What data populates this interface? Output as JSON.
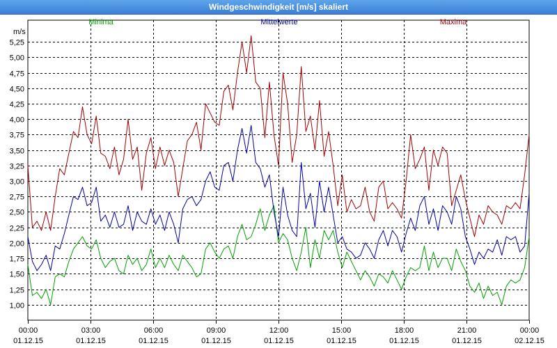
{
  "window": {
    "title": "Windgeschwindigkeit [m/s] skaliert"
  },
  "chart_data": {
    "type": "line",
    "title": "Windgeschwindigkeit [m/s] skaliert",
    "ylabel": "m/s",
    "ylim": [
      0.75,
      5.6
    ],
    "xlim_hours": [
      0,
      24
    ],
    "grid": true,
    "yticks": [
      "1,00",
      "1,25",
      "1,50",
      "1,75",
      "2,00",
      "2,25",
      "2,50",
      "2,75",
      "3,00",
      "3,25",
      "3,50",
      "3,75",
      "4,00",
      "4,25",
      "4,50",
      "4,75",
      "5,00",
      "5,25"
    ],
    "xticks": [
      {
        "time": "00:00",
        "date": "01.12.15"
      },
      {
        "time": "03:00",
        "date": "01.12.15"
      },
      {
        "time": "06:00",
        "date": "01.12.15"
      },
      {
        "time": "09:00",
        "date": "01.12.15"
      },
      {
        "time": "12:00",
        "date": "01.12.15"
      },
      {
        "time": "15:00",
        "date": "01.12.15"
      },
      {
        "time": "18:00",
        "date": "01.12.15"
      },
      {
        "time": "21:00",
        "date": "01.12.15"
      },
      {
        "time": "00:00",
        "date": "02.12.15"
      }
    ],
    "series": [
      {
        "name": "Minima",
        "color": "#00a000",
        "values": [
          1.65,
          1.15,
          1.2,
          1.1,
          1.25,
          1.0,
          1.45,
          1.5,
          1.45,
          1.7,
          1.9,
          2.0,
          2.1,
          1.95,
          1.9,
          2.05,
          1.75,
          1.6,
          1.7,
          1.75,
          1.55,
          1.5,
          1.8,
          1.65,
          1.75,
          1.55,
          1.65,
          1.9,
          1.6,
          1.75,
          1.6,
          1.8,
          1.65,
          1.55,
          1.8,
          1.7,
          1.6,
          1.45,
          1.5,
          1.9,
          2.0,
          1.85,
          1.75,
          1.9,
          1.95,
          1.75,
          2.1,
          2.3,
          2.05,
          2.1,
          2.3,
          2.55,
          2.2,
          2.45,
          2.6,
          2.0,
          2.15,
          2.05,
          1.75,
          1.55,
          1.85,
          2.25,
          1.6,
          2.05,
          1.75,
          2.2,
          2.05,
          2.2,
          1.85,
          1.6,
          1.85,
          1.7,
          1.55,
          1.4,
          1.55,
          1.45,
          1.3,
          1.5,
          1.45,
          1.35,
          1.55,
          1.4,
          1.25,
          1.45,
          1.6,
          1.55,
          1.6,
          1.95,
          1.55,
          1.85,
          1.6,
          1.75,
          1.75,
          1.55,
          1.9,
          1.7,
          1.55,
          1.3,
          1.2,
          1.35,
          1.1,
          1.3,
          1.15,
          1.2,
          1.0,
          1.3,
          1.4,
          1.35,
          1.4,
          1.6,
          2.1
        ]
      },
      {
        "name": "Mittelwerte",
        "color": "#0000a0",
        "values": [
          2.1,
          1.7,
          1.55,
          1.65,
          1.8,
          1.55,
          1.95,
          1.9,
          2.15,
          2.45,
          2.75,
          2.7,
          2.9,
          2.6,
          2.65,
          2.9,
          2.35,
          2.45,
          2.25,
          2.5,
          2.25,
          2.3,
          2.6,
          2.2,
          2.5,
          2.35,
          2.3,
          2.55,
          2.3,
          2.45,
          2.2,
          2.5,
          2.3,
          2.0,
          2.55,
          2.7,
          2.75,
          2.6,
          2.7,
          3.0,
          3.15,
          2.9,
          2.85,
          3.25,
          3.3,
          3.0,
          3.5,
          3.85,
          3.45,
          3.9,
          3.3,
          3.2,
          2.9,
          3.1,
          2.5,
          2.1,
          2.9,
          2.45,
          2.2,
          2.1,
          3.3,
          2.55,
          2.8,
          2.25,
          3.0,
          2.5,
          2.9,
          2.45,
          2.0,
          2.1,
          1.9,
          1.85,
          1.75,
          1.8,
          2.0,
          1.9,
          1.75,
          2.05,
          2.2,
          1.95,
          2.2,
          2.1,
          1.85,
          2.15,
          2.4,
          2.2,
          2.6,
          2.75,
          2.3,
          2.55,
          2.2,
          2.6,
          2.5,
          2.3,
          2.75,
          2.55,
          2.1,
          1.9,
          1.65,
          1.85,
          1.75,
          1.9,
          1.85,
          2.05,
          1.8,
          2.1,
          2.05,
          2.1,
          1.85,
          1.95,
          2.8
        ]
      },
      {
        "name": "Maxima",
        "color": "#a00000",
        "values": [
          3.25,
          2.25,
          2.35,
          2.2,
          2.5,
          2.2,
          2.75,
          3.2,
          3.1,
          3.45,
          3.8,
          3.7,
          4.2,
          3.75,
          3.6,
          4.05,
          3.45,
          3.4,
          3.2,
          3.55,
          3.1,
          3.35,
          4.0,
          3.35,
          3.55,
          2.85,
          3.45,
          3.7,
          3.2,
          3.55,
          3.25,
          3.5,
          3.3,
          2.75,
          3.2,
          3.65,
          3.75,
          3.95,
          3.5,
          4.25,
          4.1,
          3.95,
          3.9,
          4.45,
          4.55,
          4.15,
          4.75,
          5.25,
          4.75,
          5.35,
          4.6,
          4.5,
          3.7,
          4.6,
          3.75,
          3.25,
          4.75,
          4.25,
          3.3,
          3.75,
          4.85,
          3.8,
          4.05,
          3.5,
          4.3,
          3.4,
          3.8,
          3.25,
          2.6,
          3.1,
          2.5,
          2.7,
          2.55,
          2.6,
          2.9,
          2.5,
          2.35,
          2.9,
          3.0,
          2.55,
          2.65,
          2.55,
          2.4,
          3.0,
          3.75,
          3.2,
          3.35,
          3.55,
          2.85,
          3.5,
          3.25,
          3.55,
          3.45,
          2.6,
          2.85,
          3.1,
          2.7,
          2.4,
          2.1,
          2.45,
          2.3,
          2.6,
          2.5,
          2.45,
          2.3,
          2.6,
          2.55,
          2.65,
          2.55,
          3.1,
          3.75
        ]
      }
    ]
  }
}
